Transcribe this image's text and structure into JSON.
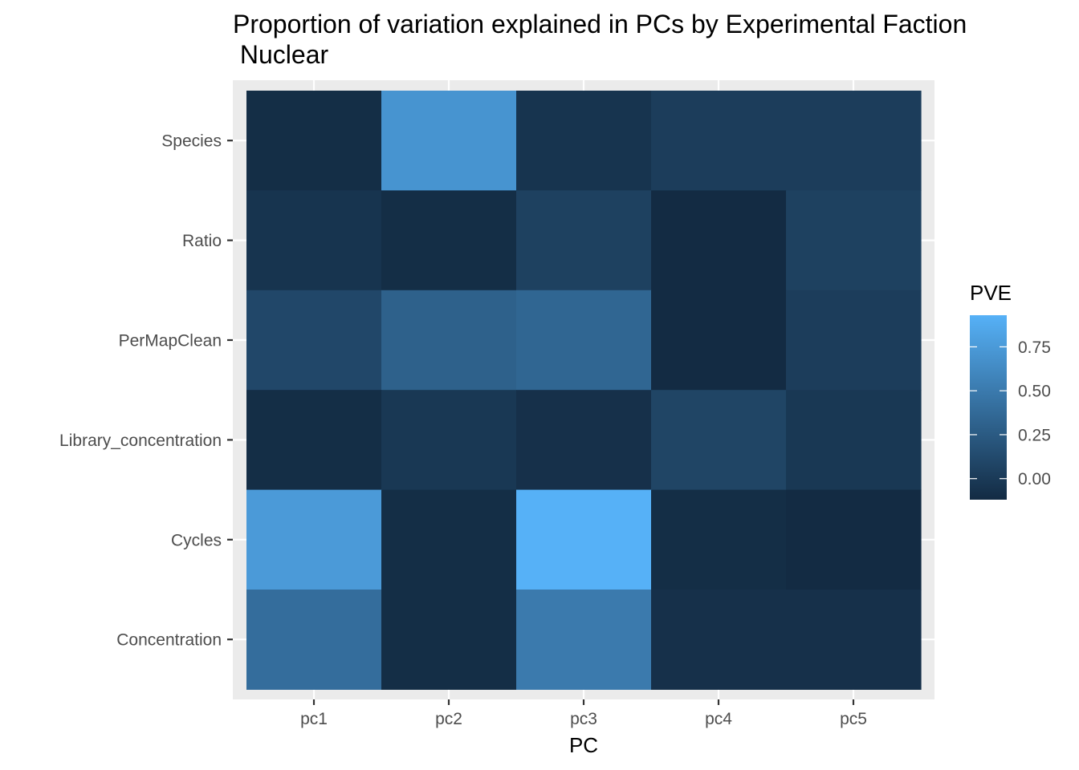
{
  "chart_data": {
    "type": "heatmap",
    "title_line1": "Proportion of variation explained in PCs by Experimental Faction",
    "title_line2": " Nuclear",
    "xlabel": "PC",
    "ylabel": "",
    "x_categories": [
      "pc1",
      "pc2",
      "pc3",
      "pc4",
      "pc5"
    ],
    "y_categories": [
      "Species",
      "Ratio",
      "PerMapClean",
      "Library_concentration",
      "Cycles",
      "Concentration"
    ],
    "values": [
      [
        -0.1,
        0.7,
        -0.05,
        0.02,
        0.02
      ],
      [
        -0.05,
        -0.1,
        0.05,
        -0.12,
        0.05
      ],
      [
        0.1,
        0.3,
        0.34,
        -0.12,
        0.02
      ],
      [
        -0.1,
        -0.02,
        -0.08,
        0.08,
        -0.02
      ],
      [
        0.75,
        -0.1,
        0.93,
        -0.1,
        -0.12
      ],
      [
        0.4,
        -0.1,
        0.5,
        -0.08,
        -0.08
      ]
    ],
    "legend": {
      "title": "PVE",
      "ticks": [
        0.0,
        0.25,
        0.5,
        0.75
      ],
      "tick_labels": [
        "0.00",
        "0.25",
        "0.50",
        "0.75"
      ],
      "range": [
        -0.12,
        0.93
      ],
      "low_color": "#132B43",
      "high_color": "#56B1F7",
      "position": "right"
    },
    "panel_background": "#EBEBEB",
    "grid": true
  }
}
